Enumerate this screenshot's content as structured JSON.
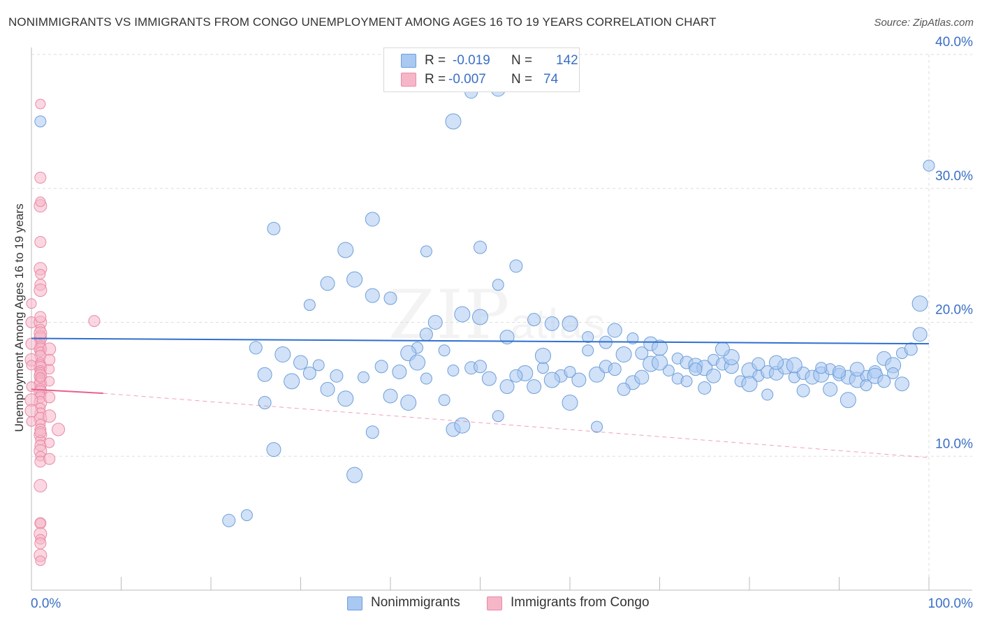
{
  "title": "NONIMMIGRANTS VS IMMIGRANTS FROM CONGO UNEMPLOYMENT AMONG AGES 16 TO 19 YEARS CORRELATION CHART",
  "source": "Source: ZipAtlas.com",
  "watermark": "ZIPatlas",
  "legend": {
    "r_label": "R =",
    "n_label": "N =",
    "rows": [
      {
        "r": "-0.019",
        "n": "142",
        "color": "#a9c8f2"
      },
      {
        "r": "-0.007",
        "n": "74",
        "color": "#f5b6c8"
      }
    ]
  },
  "bottom_legend": [
    "Nonimmigrants",
    "Immigrants from Congo"
  ],
  "colors": {
    "blue_fill": "#a9c8f2",
    "blue_stroke": "#6f9fd8",
    "blue_line": "#2f6fcf",
    "pink_fill": "#f5b6c8",
    "pink_stroke": "#e88aa6",
    "pink_line": "#e8608a",
    "tick_label": "#3a6fc4"
  },
  "chart_data": {
    "type": "scatter",
    "title": "NONIMMIGRANTS VS IMMIGRANTS FROM CONGO UNEMPLOYMENT AMONG AGES 16 TO 19 YEARS CORRELATION CHART",
    "xlabel": "",
    "ylabel": "Unemployment Among Ages 16 to 19 years",
    "xlim": [
      0,
      100
    ],
    "ylim": [
      0,
      40
    ],
    "x_tick_labels": [
      "0.0%",
      "100.0%"
    ],
    "y_tick_labels": [
      "10.0%",
      "20.0%",
      "30.0%",
      "40.0%"
    ],
    "y_ticks": [
      10,
      20,
      30,
      40
    ],
    "grid": true,
    "legend_placement": "top-center",
    "series": [
      {
        "name": "Nonimmigrants",
        "r": -0.019,
        "n": 142,
        "trend": [
          [
            0,
            18.8
          ],
          [
            100,
            18.4
          ]
        ],
        "points": [
          [
            41,
            38.8
          ],
          [
            49,
            37.2
          ],
          [
            52,
            37.4
          ],
          [
            47,
            35.0
          ],
          [
            1,
            35.0
          ],
          [
            27,
            27.0
          ],
          [
            38,
            27.7
          ],
          [
            35,
            25.4
          ],
          [
            31,
            21.3
          ],
          [
            40,
            21.8
          ],
          [
            33,
            22.9
          ],
          [
            36,
            23.2
          ],
          [
            44,
            25.3
          ],
          [
            50,
            25.6
          ],
          [
            38,
            22.0
          ],
          [
            50,
            20.4
          ],
          [
            52,
            22.8
          ],
          [
            54,
            24.2
          ],
          [
            45,
            20.0
          ],
          [
            48,
            20.6
          ],
          [
            43,
            18.1
          ],
          [
            44,
            19.1
          ],
          [
            53,
            18.9
          ],
          [
            42,
            17.7
          ],
          [
            46,
            17.9
          ],
          [
            56,
            20.2
          ],
          [
            58,
            19.9
          ],
          [
            60,
            19.9
          ],
          [
            62,
            18.9
          ],
          [
            64,
            18.5
          ],
          [
            65,
            19.4
          ],
          [
            66,
            17.6
          ],
          [
            67,
            18.8
          ],
          [
            68,
            17.7
          ],
          [
            69,
            18.4
          ],
          [
            70,
            18.1
          ],
          [
            72,
            17.3
          ],
          [
            73,
            17.0
          ],
          [
            74,
            16.8
          ],
          [
            75,
            16.6
          ],
          [
            76,
            17.2
          ],
          [
            77,
            16.9
          ],
          [
            78,
            16.7
          ],
          [
            80,
            16.4
          ],
          [
            81,
            16.0
          ],
          [
            82,
            16.3
          ],
          [
            83,
            16.2
          ],
          [
            84,
            16.7
          ],
          [
            85,
            15.9
          ],
          [
            86,
            16.2
          ],
          [
            87,
            15.9
          ],
          [
            88,
            16.1
          ],
          [
            89,
            16.5
          ],
          [
            90,
            16.1
          ],
          [
            91,
            15.9
          ],
          [
            92,
            15.7
          ],
          [
            93,
            16.0
          ],
          [
            94,
            16.3
          ],
          [
            95,
            17.3
          ],
          [
            96,
            16.8
          ],
          [
            97,
            17.7
          ],
          [
            98,
            18.0
          ],
          [
            99,
            19.1
          ],
          [
            99,
            21.4
          ],
          [
            100,
            31.7
          ],
          [
            25,
            18.1
          ],
          [
            26,
            16.1
          ],
          [
            29,
            15.6
          ],
          [
            32,
            16.8
          ],
          [
            34,
            16.0
          ],
          [
            30,
            17.0
          ],
          [
            28,
            17.6
          ],
          [
            37,
            15.9
          ],
          [
            39,
            16.7
          ],
          [
            41,
            16.3
          ],
          [
            43,
            17.0
          ],
          [
            47,
            16.4
          ],
          [
            49,
            16.6
          ],
          [
            51,
            15.8
          ],
          [
            55,
            16.2
          ],
          [
            57,
            16.6
          ],
          [
            59,
            16.0
          ],
          [
            61,
            15.7
          ],
          [
            63,
            16.1
          ],
          [
            71,
            16.4
          ],
          [
            26,
            14.0
          ],
          [
            27,
            10.5
          ],
          [
            36,
            8.6
          ],
          [
            24,
            5.6
          ],
          [
            22,
            5.2
          ],
          [
            40,
            14.5
          ],
          [
            42,
            14.0
          ],
          [
            46,
            14.2
          ],
          [
            38,
            11.8
          ],
          [
            47,
            12.0
          ],
          [
            48,
            12.3
          ],
          [
            52,
            13.0
          ],
          [
            54,
            16.0
          ],
          [
            56,
            15.2
          ],
          [
            58,
            15.7
          ],
          [
            60,
            16.3
          ],
          [
            64,
            16.7
          ],
          [
            67,
            15.5
          ],
          [
            69,
            16.9
          ],
          [
            72,
            15.8
          ],
          [
            74,
            16.5
          ],
          [
            76,
            16.0
          ],
          [
            78,
            17.4
          ],
          [
            79,
            15.6
          ],
          [
            81,
            16.9
          ],
          [
            83,
            17.0
          ],
          [
            85,
            16.8
          ],
          [
            88,
            16.6
          ],
          [
            90,
            16.3
          ],
          [
            92,
            16.5
          ],
          [
            94,
            16.0
          ],
          [
            96,
            16.2
          ],
          [
            31,
            16.2
          ],
          [
            33,
            15.0
          ],
          [
            35,
            14.3
          ],
          [
            44,
            15.8
          ],
          [
            50,
            16.7
          ],
          [
            53,
            15.2
          ],
          [
            57,
            17.5
          ],
          [
            62,
            17.9
          ],
          [
            65,
            16.5
          ],
          [
            68,
            15.9
          ],
          [
            70,
            17.0
          ],
          [
            73,
            15.6
          ],
          [
            75,
            15.1
          ],
          [
            77,
            18.0
          ],
          [
            80,
            15.4
          ],
          [
            82,
            14.6
          ],
          [
            86,
            14.9
          ],
          [
            89,
            15.0
          ],
          [
            91,
            14.2
          ],
          [
            93,
            15.3
          ],
          [
            95,
            15.6
          ],
          [
            97,
            15.4
          ],
          [
            60,
            14.0
          ],
          [
            63,
            12.2
          ],
          [
            66,
            15.0
          ]
        ]
      },
      {
        "name": "Immigrants from Congo",
        "r": -0.007,
        "n": 74,
        "trend": [
          [
            0,
            15.0
          ],
          [
            8,
            14.7
          ]
        ],
        "points": [
          [
            1,
            36.3
          ],
          [
            1,
            30.8
          ],
          [
            1,
            28.7
          ],
          [
            1,
            29.0
          ],
          [
            1,
            26.0
          ],
          [
            1,
            24.0
          ],
          [
            1,
            23.6
          ],
          [
            1,
            22.8
          ],
          [
            1,
            22.4
          ],
          [
            0,
            21.4
          ],
          [
            0,
            20.0
          ],
          [
            1,
            20.0
          ],
          [
            1,
            19.5
          ],
          [
            1,
            19.0
          ],
          [
            1,
            18.8
          ],
          [
            1,
            18.5
          ],
          [
            1,
            18.2
          ],
          [
            1,
            18.0
          ],
          [
            1,
            17.8
          ],
          [
            1,
            17.5
          ],
          [
            0,
            17.2
          ],
          [
            1,
            17.0
          ],
          [
            1,
            16.8
          ],
          [
            1,
            16.6
          ],
          [
            1,
            16.4
          ],
          [
            1,
            16.2
          ],
          [
            1,
            16.0
          ],
          [
            1,
            15.8
          ],
          [
            1,
            15.6
          ],
          [
            1,
            15.4
          ],
          [
            0,
            15.2
          ],
          [
            1,
            15.0
          ],
          [
            1,
            14.8
          ],
          [
            1,
            14.6
          ],
          [
            1,
            14.4
          ],
          [
            1,
            14.0
          ],
          [
            1,
            13.6
          ],
          [
            1,
            13.2
          ],
          [
            1,
            12.8
          ],
          [
            1,
            12.4
          ],
          [
            1,
            12.0
          ],
          [
            1,
            11.6
          ],
          [
            1,
            11.2
          ],
          [
            1,
            10.8
          ],
          [
            1,
            10.4
          ],
          [
            1,
            10.0
          ],
          [
            1,
            9.6
          ],
          [
            1,
            7.8
          ],
          [
            1,
            5.0
          ],
          [
            1,
            5.0
          ],
          [
            1,
            4.2
          ],
          [
            1,
            3.8
          ],
          [
            1,
            3.5
          ],
          [
            1,
            2.6
          ],
          [
            1,
            2.2
          ],
          [
            7,
            20.1
          ],
          [
            3,
            12.0
          ],
          [
            2,
            15.6
          ],
          [
            2,
            14.4
          ],
          [
            2,
            13.0
          ],
          [
            2,
            11.0
          ],
          [
            2,
            9.8
          ],
          [
            2,
            18.0
          ],
          [
            2,
            16.5
          ],
          [
            2,
            17.2
          ],
          [
            0,
            14.2
          ],
          [
            0,
            16.8
          ],
          [
            0,
            18.4
          ],
          [
            0,
            13.4
          ],
          [
            0,
            12.6
          ],
          [
            1,
            20.4
          ],
          [
            1,
            19.2
          ],
          [
            1,
            15.9
          ],
          [
            1,
            11.8
          ]
        ]
      }
    ]
  }
}
